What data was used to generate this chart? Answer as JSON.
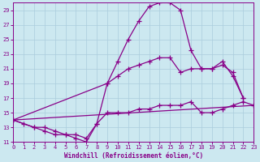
{
  "xlabel": "Windchill (Refroidissement éolien,°C)",
  "bg_color": "#cce8f0",
  "grid_color": "#aaccdd",
  "line_color": "#880088",
  "xlim": [
    0,
    23
  ],
  "ylim": [
    11,
    30
  ],
  "yticks": [
    11,
    13,
    15,
    17,
    19,
    21,
    23,
    25,
    27,
    29
  ],
  "xticks": [
    0,
    1,
    2,
    3,
    4,
    5,
    6,
    7,
    8,
    9,
    10,
    11,
    12,
    13,
    14,
    15,
    16,
    17,
    18,
    19,
    20,
    21,
    22,
    23
  ],
  "line1_x": [
    0,
    1,
    2,
    3,
    4,
    5,
    6,
    7,
    8,
    9,
    10,
    11,
    12,
    13,
    14,
    15,
    16,
    17,
    18,
    19,
    20,
    21,
    22
  ],
  "line1_y": [
    14,
    13.5,
    13,
    12.5,
    12,
    12,
    11.5,
    11,
    13.5,
    19,
    22,
    25,
    27.5,
    29.5,
    30,
    30,
    29,
    23.5,
    21,
    21,
    22,
    20,
    17
  ],
  "line2_x": [
    0,
    9,
    10,
    11,
    12,
    13,
    14,
    15,
    16,
    17,
    18,
    19,
    20,
    21,
    22
  ],
  "line2_y": [
    14,
    19,
    20,
    21,
    21.5,
    22,
    22.5,
    22.5,
    20.5,
    21,
    21,
    21,
    21.5,
    20.5,
    17
  ],
  "line3_x": [
    0,
    23
  ],
  "line3_y": [
    14,
    16
  ],
  "line4_x": [
    0,
    2,
    3,
    4,
    5,
    6,
    7,
    8,
    9,
    10,
    11,
    12,
    13,
    14,
    15,
    16,
    17,
    18,
    19,
    20,
    21,
    22,
    23
  ],
  "line4_y": [
    14,
    13,
    13,
    12.5,
    12,
    12,
    11.5,
    13.5,
    15,
    15,
    15,
    15.5,
    15.5,
    16,
    16,
    16,
    16.5,
    15,
    15,
    15.5,
    16,
    16.5,
    16
  ]
}
